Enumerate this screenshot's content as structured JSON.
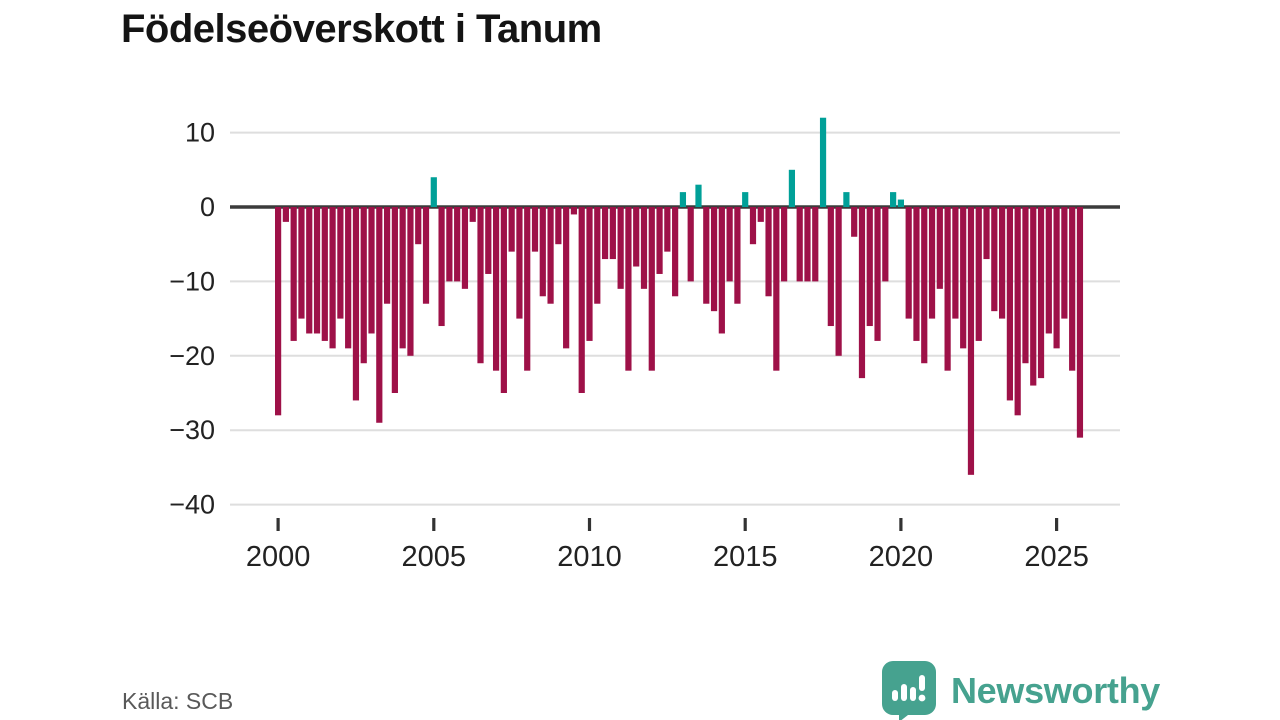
{
  "header": {
    "title": "Födelseöverskott i Tanum"
  },
  "footer": {
    "source": "Källa: SCB",
    "brand": "Newsworthy"
  },
  "colors": {
    "negative_bar": "#9e1148",
    "positive_bar": "#00a098",
    "axis_line": "#3b3b3b",
    "gridline": "#dedede",
    "tick_mark": "#333333",
    "axis_text": "#222222",
    "muted_text": "#595959",
    "brand_teal": "#46a28f",
    "background": "#ffffff"
  },
  "chart_data": {
    "type": "bar",
    "title": "Födelseöverskott i Tanum",
    "xlabel": "",
    "ylabel": "",
    "period": "quarterly",
    "x_tick_years": [
      2000,
      2005,
      2010,
      2015,
      2020,
      2025
    ],
    "y_ticks": [
      10,
      0,
      -10,
      -20,
      -30,
      -40
    ],
    "y_tick_labels": [
      "10",
      "0",
      "−10",
      "−20",
      "−30",
      "−40"
    ],
    "ylim": [
      -40,
      13
    ],
    "grid": "horizontal",
    "legend": "none",
    "source": "Källa: SCB",
    "series_quarterly": [
      {
        "year": 2000,
        "values": [
          -28,
          -2,
          -18,
          -15
        ]
      },
      {
        "year": 2001,
        "values": [
          -17,
          -17,
          -18,
          -19
        ]
      },
      {
        "year": 2002,
        "values": [
          -15,
          -19,
          -26,
          -21
        ]
      },
      {
        "year": 2003,
        "values": [
          -17,
          -29,
          -13,
          -25
        ]
      },
      {
        "year": 2004,
        "values": [
          -19,
          -20,
          -5,
          -13
        ]
      },
      {
        "year": 2005,
        "values": [
          4,
          -16,
          -10,
          -10
        ]
      },
      {
        "year": 2006,
        "values": [
          -11,
          -2,
          -21,
          -9
        ]
      },
      {
        "year": 2007,
        "values": [
          -22,
          -25,
          -6,
          -15
        ]
      },
      {
        "year": 2008,
        "values": [
          -22,
          -6,
          -12,
          -13
        ]
      },
      {
        "year": 2009,
        "values": [
          -5,
          -19,
          -1,
          -25
        ]
      },
      {
        "year": 2010,
        "values": [
          -18,
          -13,
          -7,
          -7
        ]
      },
      {
        "year": 2011,
        "values": [
          -11,
          -22,
          -8,
          -11
        ]
      },
      {
        "year": 2012,
        "values": [
          -22,
          -9,
          -6,
          -12
        ]
      },
      {
        "year": 2013,
        "values": [
          2,
          -10,
          3,
          -13
        ]
      },
      {
        "year": 2014,
        "values": [
          -14,
          -17,
          -10,
          -13
        ]
      },
      {
        "year": 2015,
        "values": [
          2,
          -5,
          -2,
          -12
        ]
      },
      {
        "year": 2016,
        "values": [
          -22,
          -10,
          5,
          -10
        ]
      },
      {
        "year": 2017,
        "values": [
          -10,
          -10,
          12,
          -16
        ]
      },
      {
        "year": 2018,
        "values": [
          -20,
          2,
          -4,
          -23
        ]
      },
      {
        "year": 2019,
        "values": [
          -16,
          -18,
          -10,
          2
        ]
      },
      {
        "year": 2020,
        "values": [
          1,
          -15,
          -18,
          -21
        ]
      },
      {
        "year": 2021,
        "values": [
          -15,
          -11,
          -22,
          -15
        ]
      },
      {
        "year": 2022,
        "values": [
          -19,
          -36,
          -18,
          -7
        ]
      },
      {
        "year": 2023,
        "values": [
          -14,
          -15,
          -26,
          -28
        ]
      },
      {
        "year": 2024,
        "values": [
          -21,
          -24,
          -23,
          -17
        ]
      },
      {
        "year": 2025,
        "values": [
          -19,
          -15,
          -22,
          -31
        ]
      }
    ]
  }
}
